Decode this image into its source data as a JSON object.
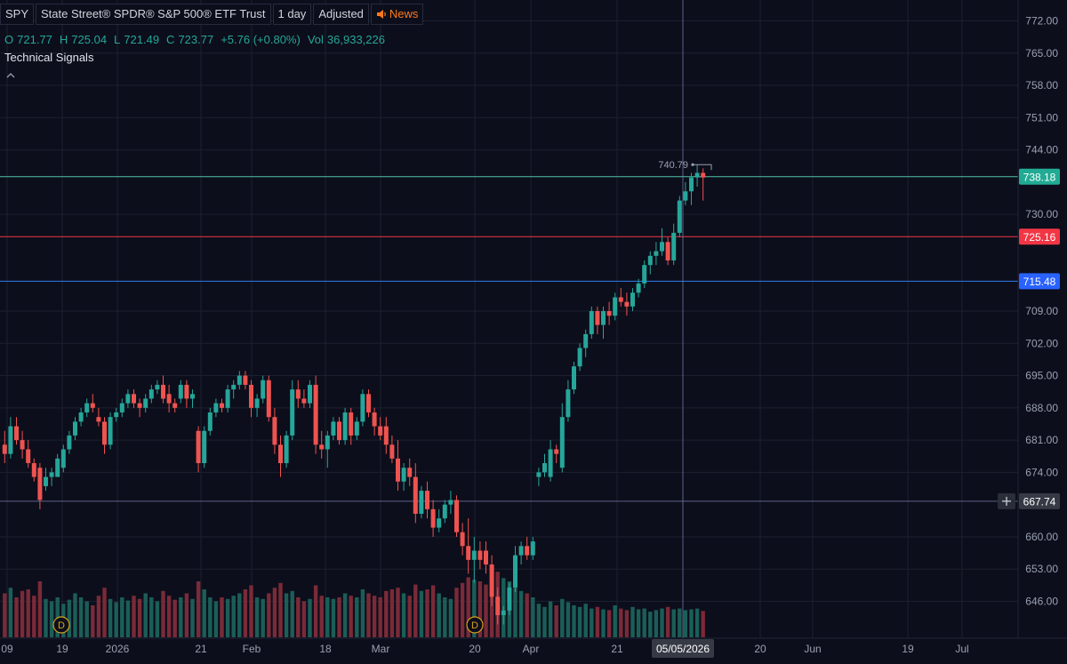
{
  "header": {
    "symbol": "SPY",
    "name": "State Street® SPDR® S&P 500® ETF Trust",
    "interval": "1 day",
    "adjustment": "Adjusted",
    "news_label": "News",
    "news_icon": "speaker-icon"
  },
  "ohlc": {
    "o_label": "O",
    "o": "721.77",
    "h_label": "H",
    "h": "725.04",
    "l_label": "L",
    "l": "721.49",
    "c_label": "C",
    "c": "723.77",
    "change": "+5.76 (+0.80%)",
    "vol_label": "Vol",
    "vol": "36,933,226"
  },
  "indicators": {
    "technical_signals": "Technical Signals",
    "collapse_icon": "chevron-up-icon"
  },
  "colors": {
    "background": "#0c0e1b",
    "up": "#26a69a",
    "down": "#ef5350",
    "grid": "#1b2030",
    "line_green": "#4fc4a8",
    "line_red": "#f23645",
    "line_blue": "#2e7df0",
    "line_crosshair": "#7d86b8"
  },
  "price_axis": {
    "ticks": [
      "772.00",
      "765.00",
      "758.00",
      "751.00",
      "744.00",
      "730.00",
      "709.00",
      "702.00",
      "695.00",
      "688.00",
      "681.00",
      "674.00",
      "660.00",
      "653.00",
      "646.00"
    ],
    "markers": [
      {
        "label": "738.18",
        "value": 738.18,
        "color": "#22ab94",
        "kind": "green-line"
      },
      {
        "label": "725.16",
        "value": 725.16,
        "color": "#f23645",
        "kind": "red-line"
      },
      {
        "label": "715.48",
        "value": 715.48,
        "color": "#2962ff",
        "kind": "blue-line"
      },
      {
        "label": "667.74",
        "value": 667.74,
        "color": "#363a45",
        "kind": "crosshair"
      }
    ],
    "plus_icon": "plus-icon"
  },
  "time_axis": {
    "labels": [
      "09",
      "19",
      "2026",
      "21",
      "Feb",
      "18",
      "Mar",
      "20",
      "Apr",
      "21",
      "20",
      "Jun",
      "19",
      "Jul"
    ],
    "crosshair_date": "05/05/2026"
  },
  "annotations": {
    "high_marker": "740.79",
    "dividend_marks": [
      "D",
      "D"
    ]
  },
  "chart_data": {
    "type": "candlestick",
    "ylim": [
      641,
      775
    ],
    "crosshair_y": 667.74,
    "candles": [
      {
        "o": 680,
        "h": 683,
        "l": 676,
        "c": 678
      },
      {
        "o": 678,
        "h": 686,
        "l": 677,
        "c": 684
      },
      {
        "o": 684,
        "h": 686,
        "l": 680,
        "c": 681
      },
      {
        "o": 681,
        "h": 683,
        "l": 677,
        "c": 679
      },
      {
        "o": 679,
        "h": 681,
        "l": 675,
        "c": 676
      },
      {
        "o": 676,
        "h": 677,
        "l": 672,
        "c": 673
      },
      {
        "o": 675,
        "h": 676,
        "l": 666,
        "c": 668
      },
      {
        "o": 671,
        "h": 675,
        "l": 670,
        "c": 673
      },
      {
        "o": 673,
        "h": 675,
        "l": 671,
        "c": 674
      },
      {
        "o": 673,
        "h": 678,
        "l": 673,
        "c": 677
      },
      {
        "o": 675,
        "h": 680,
        "l": 674,
        "c": 679
      },
      {
        "o": 679,
        "h": 683,
        "l": 678,
        "c": 682
      },
      {
        "o": 682,
        "h": 686,
        "l": 681,
        "c": 685
      },
      {
        "o": 685,
        "h": 688,
        "l": 684,
        "c": 687
      },
      {
        "o": 687,
        "h": 690,
        "l": 686,
        "c": 689
      },
      {
        "o": 689,
        "h": 691,
        "l": 687,
        "c": 688
      },
      {
        "o": 686,
        "h": 688,
        "l": 684,
        "c": 685
      },
      {
        "o": 685,
        "h": 686,
        "l": 678,
        "c": 680
      },
      {
        "o": 680,
        "h": 687,
        "l": 679,
        "c": 686
      },
      {
        "o": 686,
        "h": 688,
        "l": 685,
        "c": 687
      },
      {
        "o": 687,
        "h": 690,
        "l": 686,
        "c": 689
      },
      {
        "o": 689,
        "h": 692,
        "l": 688,
        "c": 691
      },
      {
        "o": 691,
        "h": 692,
        "l": 688,
        "c": 689
      },
      {
        "o": 689,
        "h": 690,
        "l": 686,
        "c": 688
      },
      {
        "o": 688,
        "h": 691,
        "l": 687,
        "c": 690
      },
      {
        "o": 690,
        "h": 693,
        "l": 689,
        "c": 692
      },
      {
        "o": 692,
        "h": 694,
        "l": 691,
        "c": 693
      },
      {
        "o": 693,
        "h": 695,
        "l": 689,
        "c": 690
      },
      {
        "o": 691,
        "h": 693,
        "l": 687,
        "c": 689
      },
      {
        "o": 689,
        "h": 690,
        "l": 687,
        "c": 688
      },
      {
        "o": 690,
        "h": 694,
        "l": 689,
        "c": 693
      },
      {
        "o": 693,
        "h": 694,
        "l": 688,
        "c": 690
      },
      {
        "o": 690,
        "h": 692,
        "l": 688,
        "c": 691
      },
      {
        "o": 683,
        "h": 684,
        "l": 674,
        "c": 676
      },
      {
        "o": 676,
        "h": 684,
        "l": 675,
        "c": 683
      },
      {
        "o": 683,
        "h": 688,
        "l": 682,
        "c": 687
      },
      {
        "o": 687,
        "h": 690,
        "l": 686,
        "c": 689
      },
      {
        "o": 689,
        "h": 690,
        "l": 687,
        "c": 688
      },
      {
        "o": 688,
        "h": 693,
        "l": 687,
        "c": 692
      },
      {
        "o": 692,
        "h": 694,
        "l": 690,
        "c": 693
      },
      {
        "o": 693,
        "h": 696,
        "l": 692,
        "c": 695
      },
      {
        "o": 695,
        "h": 696,
        "l": 692,
        "c": 693
      },
      {
        "o": 693,
        "h": 694,
        "l": 686,
        "c": 688
      },
      {
        "o": 688,
        "h": 691,
        "l": 686,
        "c": 690
      },
      {
        "o": 690,
        "h": 695,
        "l": 689,
        "c": 694
      },
      {
        "o": 694,
        "h": 695,
        "l": 685,
        "c": 686
      },
      {
        "o": 686,
        "h": 688,
        "l": 678,
        "c": 680
      },
      {
        "o": 680,
        "h": 682,
        "l": 673,
        "c": 676
      },
      {
        "o": 676,
        "h": 683,
        "l": 675,
        "c": 682
      },
      {
        "o": 682,
        "h": 694,
        "l": 681,
        "c": 692
      },
      {
        "o": 692,
        "h": 694,
        "l": 688,
        "c": 690
      },
      {
        "o": 690,
        "h": 692,
        "l": 688,
        "c": 689
      },
      {
        "o": 689,
        "h": 694,
        "l": 688,
        "c": 693
      },
      {
        "o": 693,
        "h": 695,
        "l": 678,
        "c": 680
      },
      {
        "o": 680,
        "h": 683,
        "l": 677,
        "c": 679
      },
      {
        "o": 679,
        "h": 683,
        "l": 675,
        "c": 682
      },
      {
        "o": 682,
        "h": 686,
        "l": 681,
        "c": 685
      },
      {
        "o": 685,
        "h": 686,
        "l": 680,
        "c": 681
      },
      {
        "o": 681,
        "h": 688,
        "l": 680,
        "c": 687
      },
      {
        "o": 687,
        "h": 688,
        "l": 680,
        "c": 682
      },
      {
        "o": 682,
        "h": 686,
        "l": 681,
        "c": 685
      },
      {
        "o": 685,
        "h": 692,
        "l": 684,
        "c": 691
      },
      {
        "o": 691,
        "h": 692,
        "l": 686,
        "c": 687
      },
      {
        "o": 687,
        "h": 688,
        "l": 682,
        "c": 684
      },
      {
        "o": 684,
        "h": 686,
        "l": 681,
        "c": 682
      },
      {
        "o": 684,
        "h": 686,
        "l": 678,
        "c": 680
      },
      {
        "o": 680,
        "h": 682,
        "l": 676,
        "c": 677
      },
      {
        "o": 677,
        "h": 681,
        "l": 670,
        "c": 672
      },
      {
        "o": 672,
        "h": 676,
        "l": 670,
        "c": 675
      },
      {
        "o": 675,
        "h": 677,
        "l": 671,
        "c": 673
      },
      {
        "o": 673,
        "h": 676,
        "l": 663,
        "c": 665
      },
      {
        "o": 665,
        "h": 671,
        "l": 664,
        "c": 670
      },
      {
        "o": 670,
        "h": 672,
        "l": 664,
        "c": 666
      },
      {
        "o": 666,
        "h": 668,
        "l": 660,
        "c": 662
      },
      {
        "o": 662,
        "h": 666,
        "l": 661,
        "c": 664
      },
      {
        "o": 664,
        "h": 668,
        "l": 663,
        "c": 667
      },
      {
        "o": 667,
        "h": 670,
        "l": 665,
        "c": 668
      },
      {
        "o": 668,
        "h": 669,
        "l": 660,
        "c": 661
      },
      {
        "o": 661,
        "h": 663,
        "l": 656,
        "c": 658
      },
      {
        "o": 658,
        "h": 664,
        "l": 652,
        "c": 655
      },
      {
        "o": 655,
        "h": 660,
        "l": 650,
        "c": 657
      },
      {
        "o": 657,
        "h": 659,
        "l": 653,
        "c": 655
      },
      {
        "o": 657,
        "h": 659,
        "l": 652,
        "c": 654
      },
      {
        "o": 654,
        "h": 656,
        "l": 645,
        "c": 647
      },
      {
        "o": 647,
        "h": 649,
        "l": 641,
        "c": 643
      },
      {
        "o": 643,
        "h": 645,
        "l": 641,
        "c": 644
      },
      {
        "o": 644,
        "h": 650,
        "l": 643,
        "c": 649
      },
      {
        "o": 649,
        "h": 658,
        "l": 648,
        "c": 656
      },
      {
        "o": 656,
        "h": 659,
        "l": 654,
        "c": 658
      },
      {
        "o": 658,
        "h": 660,
        "l": 655,
        "c": 656
      },
      {
        "o": 656,
        "h": 660,
        "l": 655,
        "c": 659
      },
      {
        "o": 673,
        "h": 675,
        "l": 671,
        "c": 674
      },
      {
        "o": 674,
        "h": 678,
        "l": 673,
        "c": 676
      },
      {
        "o": 673,
        "h": 681,
        "l": 672,
        "c": 679
      },
      {
        "o": 679,
        "h": 680,
        "l": 676,
        "c": 678
      },
      {
        "o": 675,
        "h": 689,
        "l": 674,
        "c": 686
      },
      {
        "o": 686,
        "h": 694,
        "l": 685,
        "c": 692
      },
      {
        "o": 692,
        "h": 698,
        "l": 691,
        "c": 697
      },
      {
        "o": 697,
        "h": 702,
        "l": 696,
        "c": 701
      },
      {
        "o": 701,
        "h": 705,
        "l": 699,
        "c": 704
      },
      {
        "o": 704,
        "h": 710,
        "l": 703,
        "c": 709
      },
      {
        "o": 709,
        "h": 710,
        "l": 704,
        "c": 706
      },
      {
        "o": 706,
        "h": 710,
        "l": 703,
        "c": 709
      },
      {
        "o": 709,
        "h": 711,
        "l": 706,
        "c": 708
      },
      {
        "o": 708,
        "h": 713,
        "l": 707,
        "c": 712
      },
      {
        "o": 712,
        "h": 714,
        "l": 710,
        "c": 711
      },
      {
        "o": 711,
        "h": 713,
        "l": 708,
        "c": 710
      },
      {
        "o": 710,
        "h": 714,
        "l": 709,
        "c": 713
      },
      {
        "o": 713,
        "h": 716,
        "l": 712,
        "c": 715
      },
      {
        "o": 715,
        "h": 720,
        "l": 714,
        "c": 719
      },
      {
        "o": 719,
        "h": 722,
        "l": 717,
        "c": 721
      },
      {
        "o": 721,
        "h": 724,
        "l": 719,
        "c": 722
      },
      {
        "o": 722,
        "h": 727,
        "l": 721,
        "c": 724
      },
      {
        "o": 724,
        "h": 725,
        "l": 719,
        "c": 720
      },
      {
        "o": 720,
        "h": 728,
        "l": 719,
        "c": 726
      },
      {
        "o": 726,
        "h": 734,
        "l": 725,
        "c": 733
      },
      {
        "o": 733,
        "h": 737,
        "l": 732,
        "c": 735
      },
      {
        "o": 735,
        "h": 739,
        "l": 732,
        "c": 738
      },
      {
        "o": 738,
        "h": 740.79,
        "l": 736,
        "c": 739
      },
      {
        "o": 739,
        "h": 740,
        "l": 733,
        "c": 738
      }
    ],
    "volumes": [
      0.55,
      0.62,
      0.5,
      0.58,
      0.6,
      0.52,
      0.7,
      0.48,
      0.45,
      0.5,
      0.42,
      0.47,
      0.55,
      0.5,
      0.45,
      0.4,
      0.52,
      0.62,
      0.48,
      0.44,
      0.5,
      0.46,
      0.52,
      0.48,
      0.55,
      0.5,
      0.45,
      0.58,
      0.52,
      0.47,
      0.5,
      0.55,
      0.48,
      0.7,
      0.6,
      0.5,
      0.45,
      0.5,
      0.48,
      0.52,
      0.55,
      0.6,
      0.65,
      0.5,
      0.48,
      0.55,
      0.62,
      0.68,
      0.55,
      0.58,
      0.5,
      0.45,
      0.48,
      0.65,
      0.52,
      0.5,
      0.48,
      0.5,
      0.55,
      0.52,
      0.5,
      0.6,
      0.55,
      0.52,
      0.5,
      0.58,
      0.6,
      0.62,
      0.55,
      0.52,
      0.66,
      0.58,
      0.6,
      0.65,
      0.55,
      0.5,
      0.48,
      0.62,
      0.68,
      0.75,
      0.72,
      0.7,
      0.66,
      0.78,
      0.82,
      0.74,
      0.7,
      0.62,
      0.58,
      0.55,
      0.5,
      0.42,
      0.38,
      0.45,
      0.4,
      0.48,
      0.44,
      0.4,
      0.38,
      0.42,
      0.36,
      0.38,
      0.35,
      0.34,
      0.4,
      0.36,
      0.34,
      0.38,
      0.35,
      0.36,
      0.32,
      0.34,
      0.36,
      0.38,
      0.35,
      0.36,
      0.34,
      0.35,
      0.36,
      0.33,
      0.35
    ]
  }
}
